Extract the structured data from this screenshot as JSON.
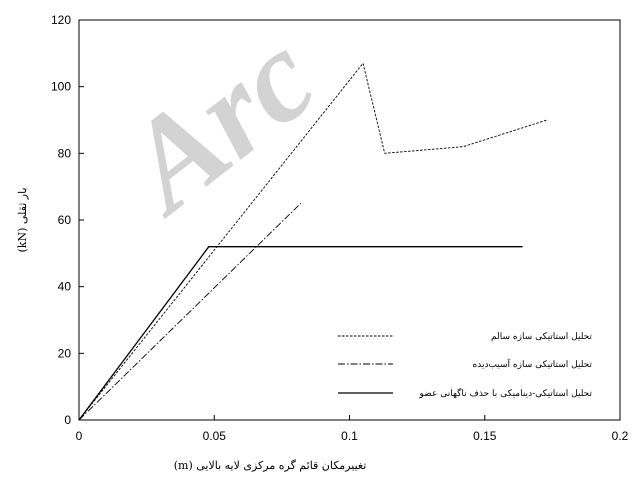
{
  "chart_data": {
    "type": "line",
    "title": "",
    "xlabel": "تغییرمکان قائم گره مرکزی لایه بالایی (m)",
    "ylabel": "بار ثقلی (kN)",
    "xlim": [
      0,
      0.2
    ],
    "ylim": [
      0,
      120
    ],
    "xticks": [
      0,
      0.05,
      0.1,
      0.15,
      0.2
    ],
    "xtick_labels": [
      "0",
      "0.05",
      "0.1",
      "0.15",
      "0.2"
    ],
    "yticks": [
      0,
      20,
      40,
      60,
      80,
      100,
      120
    ],
    "ytick_labels": [
      "0",
      "20",
      "40",
      "60",
      "80",
      "100",
      "120"
    ],
    "grid": false,
    "legend_position": "bottom-right",
    "series": [
      {
        "name": "تحلیل استاتیکی سازه سالم",
        "style": "dashed",
        "color": "#000000",
        "x": [
          0,
          0.105,
          0.113,
          0.142,
          0.173
        ],
        "y": [
          0,
          107,
          80,
          82,
          90
        ]
      },
      {
        "name": "تحلیل استاتیکی سازه آسیب‌دیده",
        "style": "dashdot",
        "color": "#000000",
        "x": [
          0,
          0.082
        ],
        "y": [
          0,
          65
        ]
      },
      {
        "name": "تحلیل استاتیکی-دینامیکی با حذف ناگهانی عضو",
        "style": "solid",
        "color": "#000000",
        "x": [
          0,
          0.048,
          0.164
        ],
        "y": [
          0,
          52,
          52
        ]
      }
    ]
  },
  "watermark": {
    "text": "Arc",
    "color": "#b0b0b0"
  }
}
